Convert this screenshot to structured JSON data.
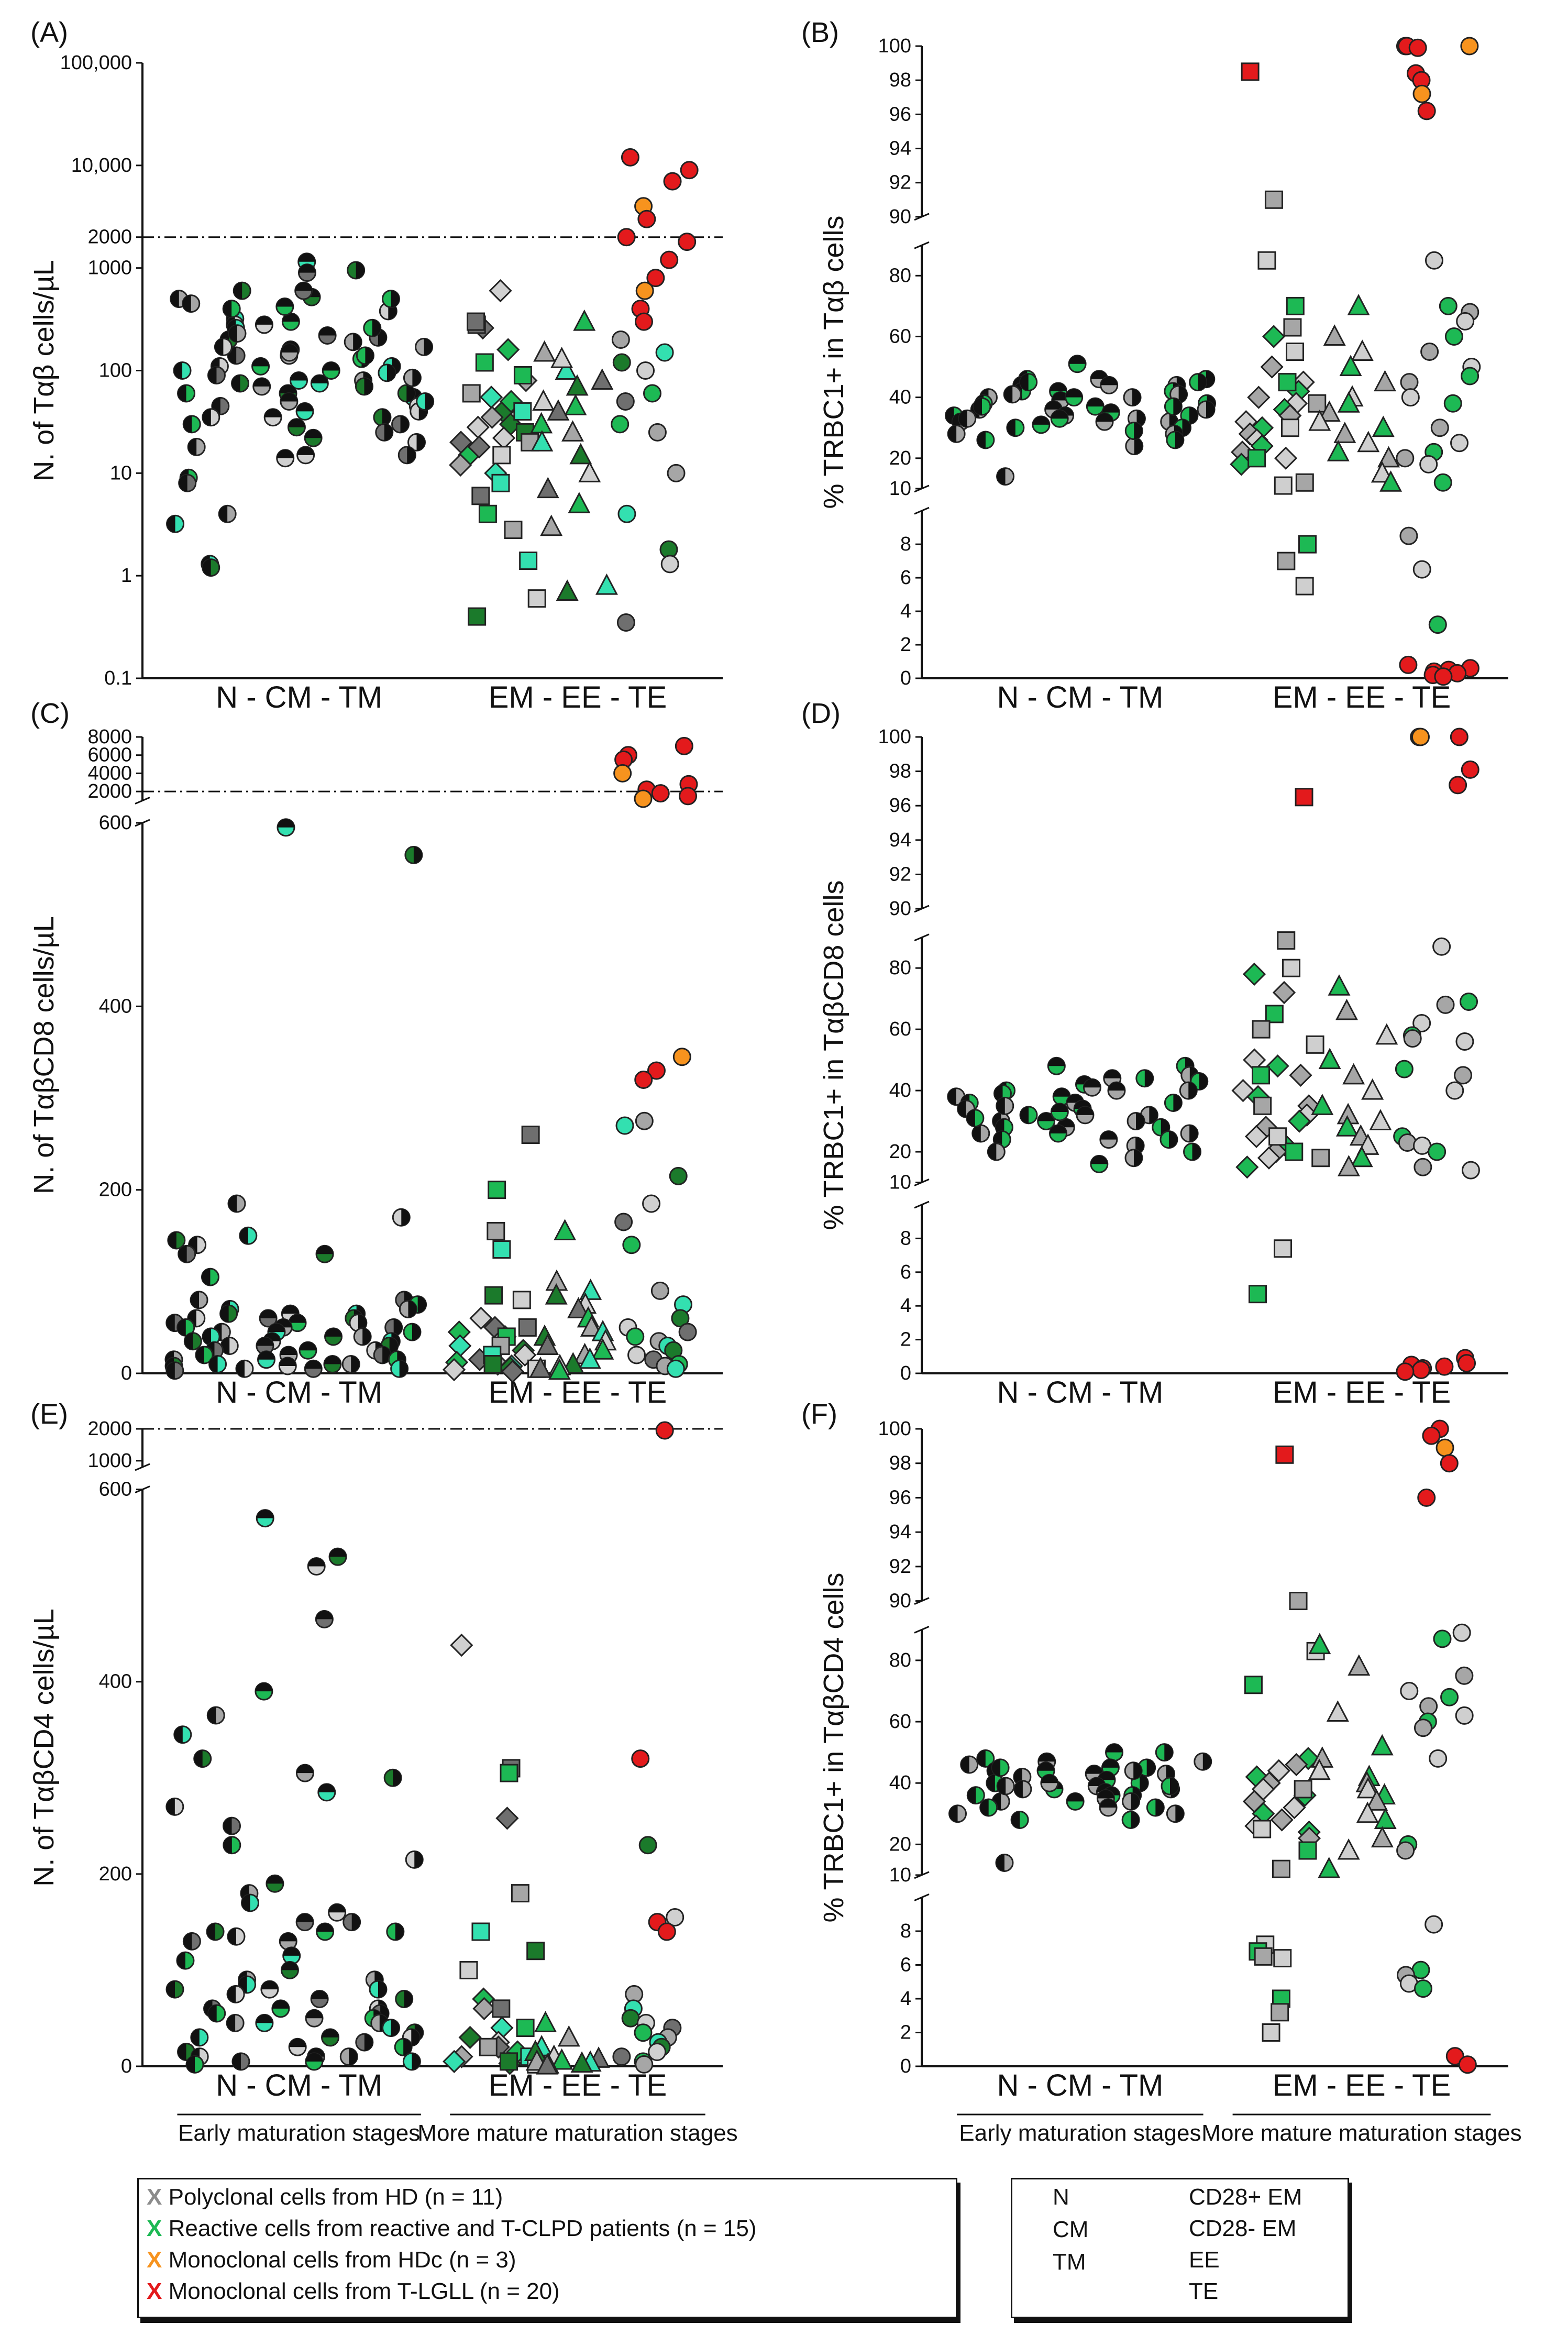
{
  "colors": {
    "hd_polyclonal": "#A6A6A6",
    "reactive": "#1DB954",
    "reactive_light": "#33E0B0",
    "reactive_dark": "#1B7A2B",
    "hdc": "#F7931E",
    "tlgll": "#E31A1C",
    "axis": "#111111"
  },
  "group_labels": {
    "early_axis": "N  -  CM - TM",
    "mature_axis": "EM  -  EE  -  TE",
    "early_caption": "Early maturation stages",
    "mature_caption": "More mature maturation stages"
  },
  "legend_left": {
    "items": [
      {
        "mark": "X",
        "color": "#A6A6A6",
        "label": "Polyclonal cells from HD (n = 11)"
      },
      {
        "mark": "X",
        "color": "#1DB954",
        "label": "Reactive cells from reactive and T-CLPD patients (n = 15)"
      },
      {
        "mark": "X",
        "color": "#F7931E",
        "label": "Monoclonal cells from HDc (n = 3)"
      },
      {
        "mark": "X",
        "color": "#E31A1C",
        "label": "Monoclonal cells from T-LGLL (n = 20)"
      }
    ]
  },
  "legend_right": {
    "items": [
      {
        "symbol": "half-circle-left",
        "label": "N"
      },
      {
        "symbol": "half-circle-top",
        "label": "CM"
      },
      {
        "symbol": "half-circle-right",
        "label": "TM"
      },
      {
        "symbol": "diamond",
        "label": "CD28+ EM"
      },
      {
        "symbol": "square",
        "label": "CD28- EM"
      },
      {
        "symbol": "triangle",
        "label": "EE"
      },
      {
        "symbol": "circle",
        "label": "TE"
      }
    ]
  },
  "chart_data": [
    {
      "panel": "(A)",
      "type": "scatter",
      "ylabel": "N. of Tαβ cells/µL",
      "yscale": "log",
      "ylim": [
        0.1,
        100000
      ],
      "ticks": [
        "100,000",
        "10,000",
        "2000",
        "1000",
        "100",
        "10",
        "1",
        "0.1"
      ],
      "threshold": 2000,
      "series": [
        {
          "group": "N",
          "values": [
            500,
            320,
            200,
            110,
            45,
            9,
            4,
            1.3,
            600,
            280,
            140,
            60,
            18,
            3.2,
            1.2,
            170,
            90,
            30,
            450,
            260,
            75,
            35,
            8,
            400,
            230,
            100
          ]
        },
        {
          "group": "CM",
          "values": [
            1150,
            520,
            280,
            160,
            100,
            70,
            40,
            22,
            14,
            600,
            300,
            140,
            75,
            28,
            15,
            900,
            420,
            150,
            80,
            60,
            35,
            220,
            110,
            50
          ]
        },
        {
          "group": "TM",
          "values": [
            950,
            380,
            210,
            130,
            80,
            55,
            35,
            20,
            15,
            260,
            170,
            110,
            70,
            45,
            30,
            500,
            190,
            95,
            60,
            40,
            25,
            140,
            85,
            50
          ]
        },
        {
          "group": "CD28+ EM",
          "values": [
            600,
            260,
            160,
            80,
            55,
            40,
            28,
            20,
            15,
            12,
            10,
            30,
            22,
            18,
            50,
            35
          ]
        },
        {
          "group": "CD28- EM",
          "values": [
            280,
            120,
            60,
            40,
            25,
            15,
            6,
            4,
            2.8,
            1.4,
            0.4,
            0.6,
            300,
            90,
            20,
            8
          ]
        },
        {
          "group": "EE",
          "values": [
            300,
            150,
            100,
            70,
            50,
            40,
            30,
            25,
            20,
            15,
            10,
            7,
            5,
            3,
            0.8,
            0.7,
            130,
            80,
            45
          ]
        },
        {
          "group": "TE",
          "values": [
            12000,
            9000,
            7000,
            4000,
            3000,
            2000,
            1800,
            1200,
            800,
            600,
            400,
            300,
            200,
            150,
            120,
            100,
            50,
            30,
            10,
            4,
            1.8,
            1.3,
            0.35,
            60,
            25
          ]
        }
      ]
    },
    {
      "panel": "(B)",
      "type": "scatter",
      "ylabel": "% TRBC1+ in Tαβ cells",
      "ylim": [
        0,
        100
      ],
      "ticks": [
        "100",
        "98",
        "96",
        "94",
        "92",
        "90",
        "80",
        "60",
        "40",
        "20",
        "10",
        "8",
        "6",
        "4",
        "2",
        "0"
      ],
      "series": [
        {
          "group": "N",
          "values": [
            46,
            44,
            42,
            40,
            38,
            36,
            34,
            32,
            30,
            28,
            26,
            14,
            45,
            41,
            37,
            33
          ]
        },
        {
          "group": "CM",
          "values": [
            51,
            46,
            42,
            39,
            37,
            36,
            35,
            34,
            33,
            32,
            31,
            44,
            40
          ]
        },
        {
          "group": "TM",
          "values": [
            46,
            44,
            42,
            40,
            38,
            36,
            34,
            32,
            30,
            28,
            26,
            24,
            45,
            41,
            37,
            33,
            29
          ]
        },
        {
          "group": "CD28+ EM",
          "values": [
            60,
            50,
            45,
            42,
            40,
            38,
            36,
            34,
            32,
            30,
            28,
            26,
            24,
            22,
            20,
            18
          ]
        },
        {
          "group": "CD28- EM",
          "values": [
            98.5,
            91,
            85,
            70,
            63,
            55,
            45,
            38,
            30,
            20,
            12,
            11,
            8,
            7,
            5.5
          ]
        },
        {
          "group": "EE",
          "values": [
            70,
            60,
            55,
            50,
            45,
            40,
            38,
            35,
            32,
            30,
            28,
            25,
            22,
            20,
            15,
            12
          ]
        },
        {
          "group": "TE",
          "values": [
            100,
            100,
            100,
            99.9,
            98.4,
            98,
            97.2,
            96.2,
            85,
            70,
            68,
            65,
            60,
            55,
            50,
            47,
            45,
            40,
            38,
            30,
            25,
            22,
            20,
            18,
            12,
            8.5,
            6.5,
            3.2,
            0.8,
            0.6,
            0.5,
            0.4,
            0.3,
            0.2,
            0.1
          ]
        }
      ]
    },
    {
      "panel": "(C)",
      "type": "scatter",
      "ylabel": "N. of TαβCD8 cells/µL",
      "ylim": [
        0,
        8000
      ],
      "ticks": [
        "8000",
        "6000",
        "4000",
        "2000",
        "600",
        "400",
        "200",
        "0"
      ],
      "threshold": 2000,
      "series": [
        {
          "group": "N",
          "values": [
            185,
            150,
            145,
            140,
            130,
            105,
            80,
            70,
            65,
            60,
            55,
            50,
            45,
            40,
            35,
            30,
            25,
            20,
            15,
            10,
            8,
            5,
            3
          ]
        },
        {
          "group": "CM",
          "values": [
            595,
            130,
            65,
            60,
            55,
            50,
            45,
            40,
            35,
            30,
            25,
            20,
            15,
            10,
            8,
            5
          ]
        },
        {
          "group": "TM",
          "values": [
            565,
            170,
            80,
            75,
            70,
            65,
            60,
            55,
            50,
            45,
            40,
            35,
            30,
            25,
            20,
            15,
            10,
            5
          ]
        },
        {
          "group": "CD28+ EM",
          "values": [
            60,
            50,
            45,
            40,
            30,
            25,
            20,
            15,
            12,
            10,
            8,
            6,
            4,
            2
          ]
        },
        {
          "group": "CD28- EM",
          "values": [
            260,
            200,
            155,
            135,
            85,
            80,
            50,
            40,
            30,
            20,
            10,
            5
          ]
        },
        {
          "group": "EE",
          "values": [
            155,
            100,
            90,
            85,
            75,
            70,
            60,
            50,
            45,
            40,
            35,
            30,
            25,
            20,
            15,
            10,
            8,
            5,
            3
          ]
        },
        {
          "group": "TE",
          "values": [
            7000,
            6000,
            5500,
            4000,
            2800,
            2200,
            1800,
            1500,
            1200,
            345,
            330,
            320,
            275,
            270,
            215,
            185,
            165,
            140,
            90,
            75,
            60,
            50,
            45,
            40,
            35,
            30,
            25,
            20,
            15,
            10,
            8,
            5
          ]
        }
      ]
    },
    {
      "panel": "(D)",
      "type": "scatter",
      "ylabel": "% TRBC1+ in TαβCD8 cells",
      "ylim": [
        0,
        100
      ],
      "ticks": [
        "100",
        "98",
        "96",
        "94",
        "92",
        "90",
        "80",
        "60",
        "40",
        "20",
        "10",
        "8",
        "6",
        "4",
        "2",
        "0"
      ],
      "series": [
        {
          "group": "N",
          "values": [
            40,
            38,
            36,
            34,
            32,
            30,
            28,
            26,
            24,
            20,
            39,
            35,
            31
          ]
        },
        {
          "group": "CM",
          "values": [
            48,
            44,
            42,
            40,
            38,
            36,
            34,
            32,
            30,
            28,
            26,
            24,
            16,
            41,
            33
          ]
        },
        {
          "group": "TM",
          "values": [
            48,
            45,
            43,
            40,
            36,
            32,
            28,
            26,
            24,
            22,
            20,
            18,
            44,
            30
          ]
        },
        {
          "group": "CD28+ EM",
          "values": [
            78,
            72,
            50,
            48,
            45,
            40,
            38,
            35,
            32,
            30,
            28,
            25,
            22,
            20,
            18,
            15
          ]
        },
        {
          "group": "CD28- EM",
          "values": [
            96.5,
            89,
            80,
            65,
            60,
            55,
            45,
            35,
            25,
            20,
            18,
            7.4,
            4.7
          ]
        },
        {
          "group": "EE",
          "values": [
            74,
            66,
            58,
            50,
            45,
            40,
            35,
            32,
            30,
            28,
            25,
            22,
            18,
            15
          ]
        },
        {
          "group": "TE",
          "values": [
            100,
            100,
            100,
            98.1,
            97.2,
            87,
            69,
            68,
            62,
            58,
            57,
            56,
            47,
            45,
            40,
            25,
            23,
            22,
            20,
            15,
            14,
            0.9,
            0.6,
            0.5,
            0.4,
            0.3,
            0.2,
            0.1
          ]
        }
      ]
    },
    {
      "panel": "(E)",
      "type": "scatter",
      "ylabel": "N. of TαβCD4 cells/µL",
      "ylim": [
        0,
        2000
      ],
      "ticks": [
        "2000",
        "1000",
        "600",
        "400",
        "200",
        "0"
      ],
      "threshold": 2000,
      "series": [
        {
          "group": "N",
          "values": [
            365,
            345,
            320,
            270,
            250,
            230,
            180,
            170,
            140,
            135,
            130,
            110,
            90,
            85,
            80,
            75,
            60,
            55,
            45,
            30,
            15,
            10,
            5,
            2
          ]
        },
        {
          "group": "CM",
          "values": [
            570,
            530,
            520,
            465,
            390,
            305,
            285,
            190,
            160,
            150,
            140,
            130,
            115,
            100,
            80,
            70,
            60,
            50,
            45,
            30,
            20,
            10,
            5
          ]
        },
        {
          "group": "TM",
          "values": [
            300,
            215,
            150,
            140,
            90,
            80,
            70,
            60,
            55,
            50,
            45,
            40,
            35,
            30,
            25,
            20,
            10,
            5
          ]
        },
        {
          "group": "CD28+ EM",
          "values": [
            438,
            258,
            70,
            60,
            40,
            30,
            25,
            20,
            15,
            10,
            5,
            3
          ]
        },
        {
          "group": "CD28- EM",
          "values": [
            310,
            305,
            180,
            140,
            120,
            100,
            60,
            40,
            20,
            10,
            5,
            2
          ]
        },
        {
          "group": "EE",
          "values": [
            45,
            30,
            20,
            15,
            10,
            8,
            6,
            5,
            4,
            3,
            2,
            1
          ]
        },
        {
          "group": "TE",
          "values": [
            1950,
            320,
            230,
            155,
            150,
            140,
            75,
            60,
            50,
            45,
            40,
            35,
            30,
            25,
            20,
            15,
            10,
            5,
            2
          ]
        }
      ]
    },
    {
      "panel": "(F)",
      "type": "scatter",
      "ylabel": "% TRBC1+ in TαβCD4 cells",
      "ylim": [
        0,
        100
      ],
      "ticks": [
        "100",
        "98",
        "96",
        "94",
        "92",
        "90",
        "80",
        "60",
        "40",
        "20",
        "10",
        "8",
        "6",
        "4",
        "2",
        "0"
      ],
      "series": [
        {
          "group": "N",
          "values": [
            48,
            46,
            44,
            42,
            40,
            38,
            36,
            34,
            32,
            30,
            28,
            14,
            45,
            39
          ]
        },
        {
          "group": "CM",
          "values": [
            50,
            47,
            45,
            43,
            41,
            39,
            38,
            37,
            36,
            35,
            34,
            32,
            44,
            40
          ]
        },
        {
          "group": "TM",
          "values": [
            50,
            47,
            45,
            43,
            40,
            38,
            36,
            34,
            32,
            30,
            28,
            44,
            39
          ]
        },
        {
          "group": "CD28+ EM",
          "values": [
            48,
            46,
            44,
            42,
            40,
            38,
            36,
            34,
            32,
            30,
            28,
            26,
            24,
            22
          ]
        },
        {
          "group": "CD28- EM",
          "values": [
            98.5,
            90,
            83,
            72,
            38,
            25,
            18,
            12,
            7.2,
            6.8,
            6.5,
            6.4,
            4,
            3.2,
            2
          ]
        },
        {
          "group": "EE",
          "values": [
            85,
            78,
            63,
            52,
            48,
            44,
            42,
            40,
            38,
            36,
            34,
            30,
            28,
            22,
            18,
            12
          ]
        },
        {
          "group": "TE",
          "values": [
            100,
            99.6,
            98.9,
            98,
            96,
            89,
            87,
            75,
            70,
            68,
            65,
            62,
            60,
            58,
            48,
            20,
            18,
            8.4,
            5.7,
            5.4,
            4.9,
            4.6,
            0.6,
            0.1
          ]
        }
      ]
    }
  ]
}
